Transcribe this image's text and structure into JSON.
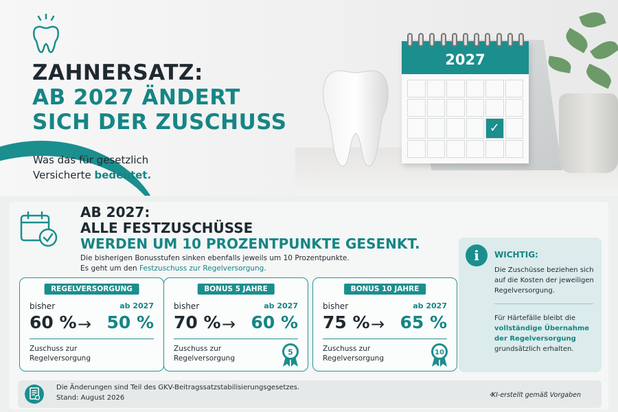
{
  "hero": {
    "title_line1": "ZAHNERSATZ:",
    "title_line2": "AB 2027 ÄNDERT",
    "title_line3": "SICH DER ZUSCHUSS",
    "subtitle_part1": "Was das für gesetzlich",
    "subtitle_part2": "Versicherte ",
    "subtitle_accent": "bedeutet.",
    "calendar_year": "2027",
    "calendar_check": "✓"
  },
  "section": {
    "title_line1": "AB 2027:",
    "title_line2": "ALLE FESTZUSCHÜSSE",
    "title_line3": "WERDEN UM 10 PROZENTPUNKTE GESENKT.",
    "note_line1": "Die bisherigen Bonusstufen sinken ebenfalls jeweils um 10 Prozentpunkte.",
    "note_line2_part1": "Es geht um den ",
    "note_line2_accent": "Festzuschuss zur Regelversorgung",
    "note_line2_part2": "."
  },
  "cards": [
    {
      "badge": "REGELVERSORGUNG",
      "label_old": "bisher",
      "label_new": "ab 2027",
      "value_old": "60 %",
      "arrow": "→",
      "value_new": "50 %",
      "foot_line1": "Zuschuss zur",
      "foot_line2": "Regelversorgung",
      "medal": ""
    },
    {
      "badge": "BONUS 5 JAHRE",
      "label_old": "bisher",
      "label_new": "ab 2027",
      "value_old": "70 %",
      "arrow": "→",
      "value_new": "60 %",
      "foot_line1": "Zuschuss zur",
      "foot_line2": "Regelversorgung",
      "medal": "5"
    },
    {
      "badge": "BONUS 10 JAHRE",
      "label_old": "bisher",
      "label_new": "ab 2027",
      "value_old": "75 %",
      "arrow": "→",
      "value_new": "65 %",
      "foot_line1": "Zuschuss zur",
      "foot_line2": "Regelversorgung",
      "medal": "10"
    }
  ],
  "info": {
    "icon": "i",
    "title": "WICHTIG:",
    "text1": "Die Zuschüsse beziehen sich auf die Kosten der jeweiligen Regelversorgung.",
    "text2_part1": "Für Härtefälle bleibt die ",
    "text2_accent": "vollständige Übernahme der Regelversorgung",
    "text2_part2": " grundsätzlich erhalten."
  },
  "footer": {
    "line1": "Die Änderungen sind Teil des GKV-Beitragssatzstabilisierungsgesetzes.",
    "line2": "Stand: August 2026",
    "ai_note": "KI-erstellt gemäß Vorgaben"
  },
  "colors": {
    "accent": "#1b8e8e",
    "text": "#1f2a30",
    "info_bg": "#dcebec"
  }
}
